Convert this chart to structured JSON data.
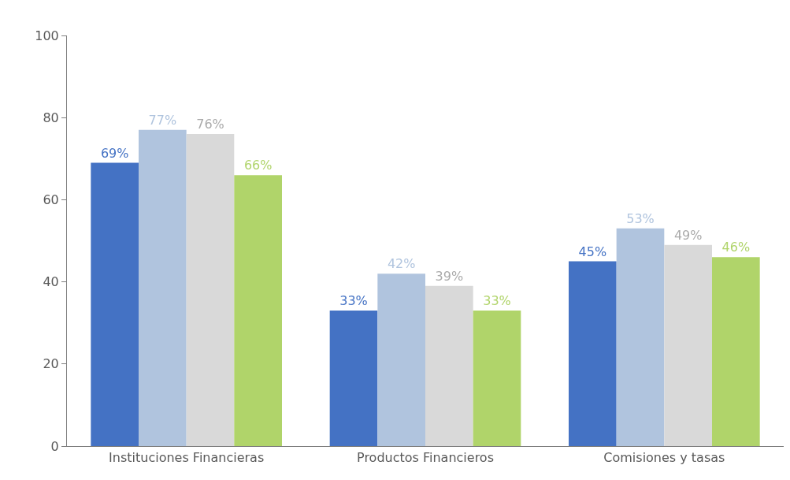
{
  "chart_data": {
    "type": "bar",
    "categories": [
      "Instituciones Financieras",
      "Productos Financieros",
      "Comisiones y tasas"
    ],
    "series": [
      {
        "color": "#4472c4",
        "values": [
          69,
          33,
          45
        ],
        "value_labels": [
          "69%",
          "33%",
          "45%"
        ]
      },
      {
        "color": "#b0c4de",
        "values": [
          77,
          42,
          53
        ],
        "value_labels": [
          "77%",
          "42%",
          "53%"
        ]
      },
      {
        "color": "#d9d9d9",
        "values": [
          76,
          39,
          49
        ],
        "value_labels": [
          "76%",
          "39%",
          "49%"
        ]
      },
      {
        "color": "#b0d46a",
        "values": [
          66,
          33,
          46
        ],
        "value_labels": [
          "66%",
          "33%",
          "46%"
        ]
      }
    ],
    "ylim": [
      0,
      100
    ],
    "yticks": [
      0,
      20,
      40,
      60,
      80,
      100
    ],
    "legend": false
  }
}
